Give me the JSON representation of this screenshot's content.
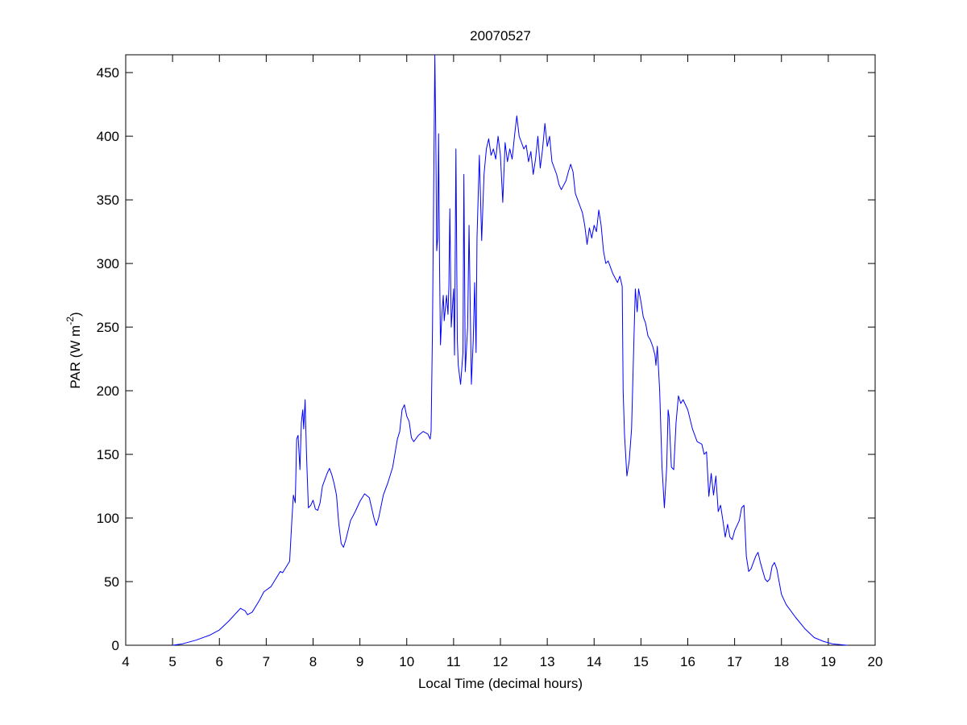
{
  "chart_data": {
    "type": "line",
    "title": "20070527",
    "xlabel": "Local Time (decimal hours)",
    "ylabel": {
      "text": "PAR (W m",
      "sup": "-2",
      "end": ")"
    },
    "color": "#0000ff",
    "x": [
      5.0,
      5.2,
      5.5,
      5.8,
      6.0,
      6.2,
      6.4,
      6.45,
      6.55,
      6.6,
      6.7,
      6.85,
      6.95,
      7.1,
      7.2,
      7.3,
      7.35,
      7.45,
      7.5,
      7.55,
      7.58,
      7.62,
      7.65,
      7.68,
      7.72,
      7.75,
      7.78,
      7.8,
      7.83,
      7.86,
      7.9,
      7.95,
      8.0,
      8.05,
      8.1,
      8.15,
      8.2,
      8.3,
      8.35,
      8.4,
      8.45,
      8.5,
      8.55,
      8.6,
      8.65,
      8.7,
      8.8,
      8.9,
      9.0,
      9.1,
      9.2,
      9.3,
      9.35,
      9.4,
      9.5,
      9.6,
      9.7,
      9.8,
      9.85,
      9.9,
      9.95,
      10.0,
      10.05,
      10.1,
      10.15,
      10.25,
      10.35,
      10.45,
      10.5,
      10.52,
      10.55,
      10.58,
      10.6,
      10.62,
      10.64,
      10.66,
      10.68,
      10.7,
      10.72,
      10.75,
      10.78,
      10.8,
      10.85,
      10.88,
      10.9,
      10.92,
      10.95,
      11.0,
      11.02,
      11.05,
      11.08,
      11.1,
      11.15,
      11.2,
      11.22,
      11.25,
      11.3,
      11.33,
      11.38,
      11.42,
      11.45,
      11.48,
      11.5,
      11.55,
      11.6,
      11.65,
      11.7,
      11.75,
      11.8,
      11.85,
      11.9,
      11.95,
      12.0,
      12.05,
      12.1,
      12.15,
      12.2,
      12.25,
      12.3,
      12.35,
      12.4,
      12.45,
      12.5,
      12.55,
      12.6,
      12.65,
      12.7,
      12.75,
      12.8,
      12.85,
      12.9,
      12.95,
      13.0,
      13.05,
      13.1,
      13.2,
      13.25,
      13.3,
      13.4,
      13.45,
      13.5,
      13.55,
      13.6,
      13.7,
      13.75,
      13.8,
      13.85,
      13.9,
      13.95,
      14.0,
      14.05,
      14.1,
      14.15,
      14.2,
      14.25,
      14.3,
      14.4,
      14.5,
      14.55,
      14.6,
      14.62,
      14.65,
      14.7,
      14.75,
      14.8,
      14.85,
      14.88,
      14.92,
      14.95,
      15.0,
      15.05,
      15.1,
      15.15,
      15.2,
      15.25,
      15.3,
      15.32,
      15.35,
      15.4,
      15.45,
      15.5,
      15.55,
      15.58,
      15.6,
      15.65,
      15.7,
      15.75,
      15.8,
      15.85,
      15.9,
      16.0,
      16.1,
      16.2,
      16.3,
      16.35,
      16.4,
      16.45,
      16.5,
      16.55,
      16.6,
      16.65,
      16.7,
      16.75,
      16.8,
      16.85,
      16.9,
      16.95,
      17.0,
      17.1,
      17.15,
      17.2,
      17.25,
      17.3,
      17.35,
      17.45,
      17.5,
      17.55,
      17.65,
      17.7,
      17.75,
      17.8,
      17.85,
      17.9,
      18.0,
      18.1,
      18.3,
      18.5,
      18.7,
      18.9,
      19.1,
      19.4
    ],
    "values": [
      0,
      1,
      4,
      8,
      12,
      19,
      27,
      29,
      27,
      24,
      26,
      35,
      42,
      46,
      52,
      58,
      57,
      63,
      66,
      100,
      118,
      112,
      162,
      165,
      138,
      175,
      185,
      170,
      193,
      150,
      108,
      110,
      114,
      107,
      106,
      112,
      125,
      135,
      139,
      134,
      127,
      118,
      95,
      80,
      77,
      83,
      98,
      105,
      113,
      119,
      116,
      100,
      94,
      100,
      118,
      128,
      140,
      162,
      168,
      185,
      189,
      180,
      176,
      163,
      160,
      165,
      168,
      166,
      162,
      168,
      250,
      380,
      464,
      400,
      310,
      320,
      402,
      300,
      236,
      260,
      275,
      255,
      275,
      260,
      282,
      343,
      250,
      280,
      228,
      390,
      240,
      220,
      205,
      230,
      370,
      215,
      250,
      330,
      205,
      240,
      285,
      230,
      320,
      385,
      318,
      370,
      390,
      398,
      385,
      390,
      382,
      400,
      385,
      348,
      395,
      380,
      390,
      382,
      400,
      416,
      400,
      395,
      390,
      393,
      380,
      388,
      370,
      382,
      400,
      375,
      390,
      410,
      392,
      400,
      380,
      370,
      362,
      358,
      365,
      372,
      378,
      372,
      355,
      345,
      340,
      330,
      315,
      328,
      320,
      330,
      325,
      342,
      330,
      310,
      300,
      302,
      292,
      285,
      290,
      282,
      200,
      165,
      133,
      145,
      170,
      240,
      280,
      262,
      280,
      270,
      258,
      253,
      243,
      240,
      235,
      228,
      220,
      235,
      200,
      140,
      108,
      140,
      185,
      180,
      140,
      138,
      175,
      196,
      190,
      193,
      185,
      170,
      160,
      158,
      150,
      152,
      117,
      135,
      118,
      133,
      105,
      110,
      98,
      85,
      95,
      85,
      83,
      90,
      98,
      108,
      110,
      70,
      58,
      60,
      70,
      73,
      65,
      52,
      50,
      52,
      62,
      65,
      60,
      40,
      32,
      22,
      13,
      6,
      3,
      1,
      0
    ],
    "xlim": [
      4,
      20
    ],
    "ylim": [
      0,
      464
    ],
    "xticks": [
      4,
      5,
      6,
      7,
      8,
      9,
      10,
      11,
      12,
      13,
      14,
      15,
      16,
      17,
      18,
      19,
      20
    ],
    "yticks": [
      0,
      50,
      100,
      150,
      200,
      250,
      300,
      350,
      400,
      450
    ]
  }
}
